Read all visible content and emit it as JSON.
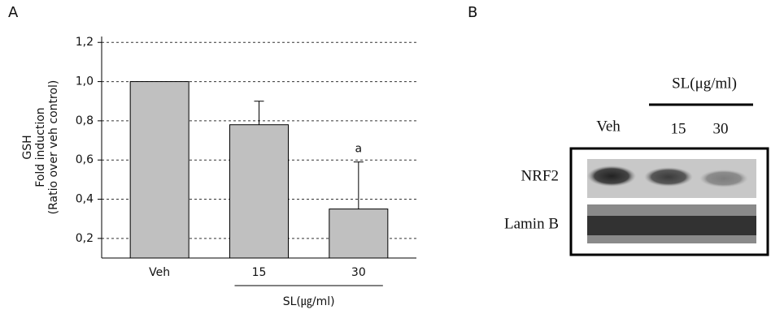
{
  "chart_data": {
    "type": "bar",
    "panel_label": "A",
    "ylabel": [
      "GSH",
      "Fold induction",
      "(Ratio over veh control)"
    ],
    "categories": [
      "Veh",
      "15",
      "30"
    ],
    "values": [
      1.0,
      0.78,
      0.35
    ],
    "errors": [
      null,
      0.12,
      0.24
    ],
    "value_annotations": [
      null,
      null,
      "a"
    ],
    "group_label": "SL(㎍/ml)",
    "color": "#c0c0c0",
    "ylim": [
      0.1,
      1.23
    ],
    "yticks": [
      {
        "value": 0.2,
        "label": "0,2"
      },
      {
        "value": 0.4,
        "label": "0,4"
      },
      {
        "value": 0.6,
        "label": "0,6"
      },
      {
        "value": 0.8,
        "label": "0,8"
      },
      {
        "value": 1.0,
        "label": "1,0"
      },
      {
        "value": 1.2,
        "label": "1,2"
      }
    ],
    "grid": true
  },
  "panel_b": {
    "panel_label": "B",
    "group_label": "SL(μg/ml)",
    "lanes": [
      "Veh",
      "15",
      "30"
    ],
    "rows": [
      "NRF2",
      "Lamin B"
    ]
  }
}
